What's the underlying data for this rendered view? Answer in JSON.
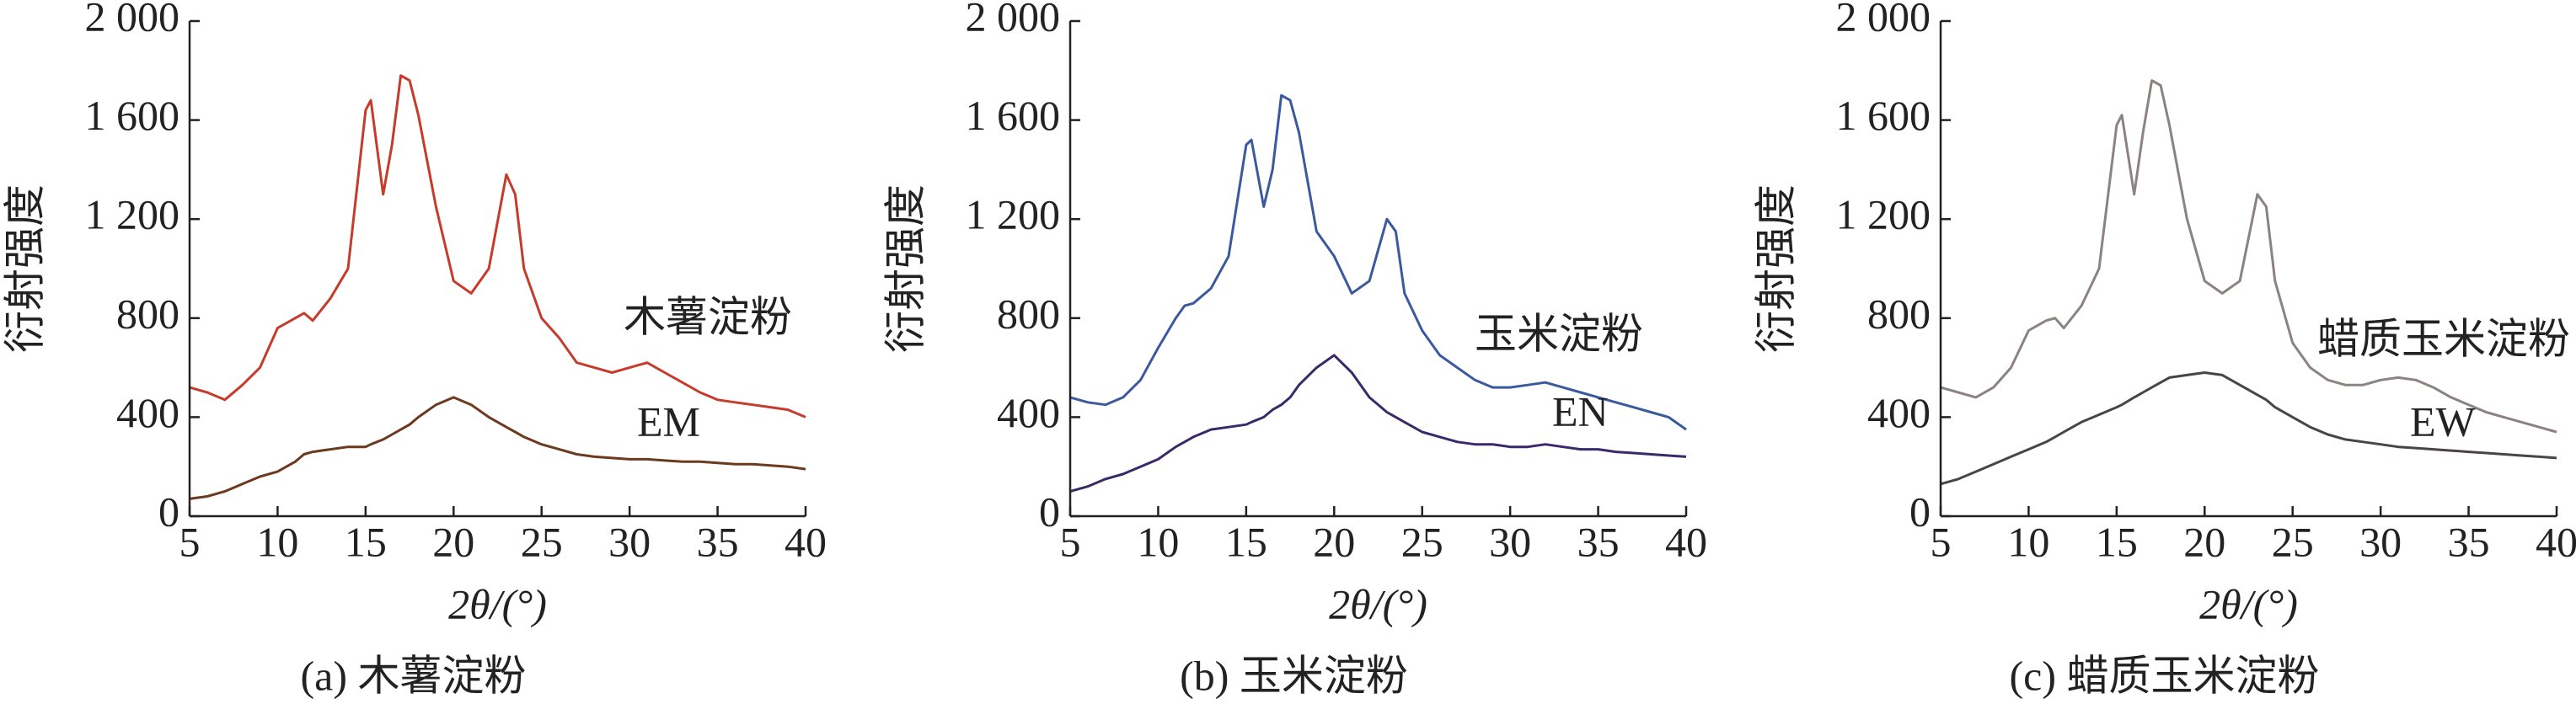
{
  "chart_data": [
    {
      "type": "line",
      "caption": "(a) 木薯淀粉",
      "y_label": "衍射强度",
      "x_label": "2θ/(°)",
      "x": [
        5,
        6,
        7,
        8,
        9,
        10,
        11,
        11.5,
        12,
        13,
        14,
        15,
        15.3,
        16,
        16.5,
        17,
        17.5,
        18,
        19,
        20,
        21,
        22,
        23,
        23.5,
        24,
        25,
        26,
        27,
        28,
        29,
        30,
        31,
        32,
        33,
        34,
        35,
        36,
        37,
        38,
        39,
        40
      ],
      "xlim": [
        5,
        40
      ],
      "xticks": [
        5,
        10,
        15,
        20,
        25,
        30,
        35,
        40
      ],
      "ylim": [
        0,
        2000
      ],
      "yticks": [
        0,
        400,
        800,
        {
          "value": 1200,
          "label": "1 200"
        },
        {
          "value": 1600,
          "label": "1 600"
        },
        {
          "value": 2000,
          "label": "2 000"
        }
      ],
      "series": [
        {
          "name": "木薯淀粉",
          "color": "#c63b2c",
          "values": [
            520,
            500,
            470,
            530,
            600,
            760,
            800,
            820,
            790,
            880,
            1000,
            1640,
            1680,
            1300,
            1500,
            1780,
            1760,
            1620,
            1250,
            950,
            900,
            1000,
            1380,
            1300,
            1000,
            800,
            720,
            620,
            600,
            580,
            600,
            620,
            580,
            540,
            500,
            470,
            460,
            450,
            440,
            430,
            400
          ]
        },
        {
          "name": "EM",
          "color": "#6b3a1f",
          "values": [
            70,
            80,
            100,
            130,
            160,
            180,
            220,
            250,
            260,
            270,
            280,
            280,
            290,
            310,
            330,
            350,
            370,
            400,
            450,
            480,
            450,
            400,
            360,
            340,
            320,
            290,
            270,
            250,
            240,
            235,
            230,
            230,
            225,
            220,
            220,
            215,
            210,
            210,
            205,
            200,
            190
          ]
        }
      ]
    },
    {
      "type": "line",
      "caption": "(b) 玉米淀粉",
      "y_label": "衍射强度",
      "x_label": "2θ/(°)",
      "x": [
        5,
        6,
        7,
        8,
        9,
        10,
        11,
        11.5,
        12,
        13,
        14,
        15,
        15.3,
        16,
        16.5,
        17,
        17.5,
        18,
        19,
        20,
        21,
        22,
        23,
        23.5,
        24,
        25,
        26,
        27,
        28,
        29,
        30,
        31,
        32,
        33,
        34,
        35,
        36,
        37,
        38,
        39,
        40
      ],
      "xlim": [
        5,
        40
      ],
      "xticks": [
        5,
        10,
        15,
        20,
        25,
        30,
        35,
        40
      ],
      "ylim": [
        0,
        2000
      ],
      "yticks": [
        0,
        400,
        800,
        {
          "value": 1200,
          "label": "1 200"
        },
        {
          "value": 1600,
          "label": "1 600"
        },
        {
          "value": 2000,
          "label": "2 000"
        }
      ],
      "series": [
        {
          "name": "玉米淀粉",
          "color": "#3b5a9e",
          "values": [
            480,
            460,
            450,
            480,
            550,
            680,
            800,
            850,
            860,
            920,
            1050,
            1500,
            1520,
            1250,
            1400,
            1700,
            1680,
            1550,
            1150,
            1050,
            900,
            950,
            1200,
            1150,
            900,
            750,
            650,
            600,
            550,
            520,
            520,
            530,
            540,
            520,
            500,
            480,
            460,
            440,
            420,
            400,
            350
          ]
        },
        {
          "name": "EN",
          "color": "#3a2a6a",
          "values": [
            100,
            120,
            150,
            170,
            200,
            230,
            280,
            300,
            320,
            350,
            360,
            370,
            380,
            400,
            430,
            450,
            480,
            530,
            600,
            650,
            580,
            480,
            420,
            400,
            380,
            340,
            320,
            300,
            290,
            290,
            280,
            280,
            290,
            280,
            270,
            270,
            260,
            255,
            250,
            245,
            240
          ]
        }
      ]
    },
    {
      "type": "line",
      "caption": "(c) 蜡质玉米淀粉",
      "y_label": "衍射强度",
      "x_label": "2θ/(°)",
      "x": [
        5,
        6,
        7,
        8,
        9,
        10,
        11,
        11.5,
        12,
        13,
        14,
        15,
        15.3,
        16,
        16.5,
        17,
        17.5,
        18,
        19,
        20,
        21,
        22,
        23,
        23.5,
        24,
        25,
        26,
        27,
        28,
        29,
        30,
        31,
        32,
        33,
        34,
        35,
        36,
        37,
        38,
        39,
        40
      ],
      "xlim": [
        5,
        40
      ],
      "xticks": [
        5,
        10,
        15,
        20,
        25,
        30,
        35,
        40
      ],
      "ylim": [
        0,
        2000
      ],
      "yticks": [
        0,
        400,
        800,
        {
          "value": 1200,
          "label": "1 200"
        },
        {
          "value": 1600,
          "label": "1 600"
        },
        {
          "value": 2000,
          "label": "2 000"
        }
      ],
      "series": [
        {
          "name": "蜡质玉米淀粉",
          "color": "#8c8282",
          "values": [
            520,
            500,
            480,
            520,
            600,
            750,
            790,
            800,
            760,
            850,
            1000,
            1580,
            1620,
            1300,
            1550,
            1760,
            1740,
            1580,
            1200,
            950,
            900,
            950,
            1300,
            1250,
            950,
            700,
            600,
            550,
            530,
            530,
            550,
            560,
            550,
            520,
            480,
            450,
            420,
            400,
            380,
            360,
            340
          ]
        },
        {
          "name": "EW",
          "color": "#4a4444",
          "values": [
            130,
            150,
            180,
            210,
            240,
            270,
            300,
            320,
            340,
            380,
            410,
            440,
            450,
            480,
            500,
            520,
            540,
            560,
            570,
            580,
            570,
            530,
            490,
            470,
            440,
            400,
            360,
            330,
            310,
            300,
            290,
            280,
            275,
            270,
            265,
            260,
            255,
            250,
            245,
            240,
            235
          ]
        }
      ]
    }
  ]
}
